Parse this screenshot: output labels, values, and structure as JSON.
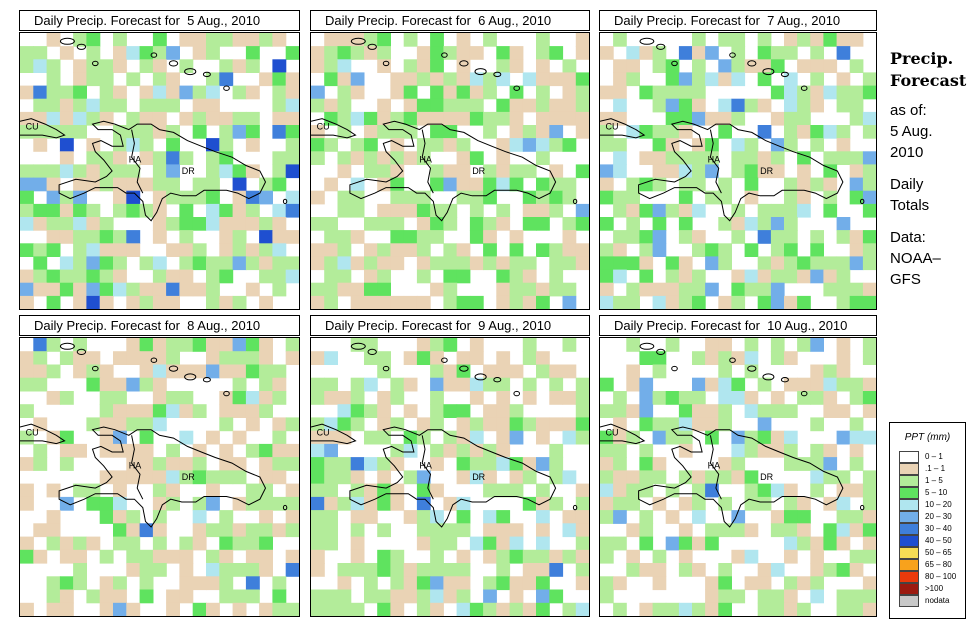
{
  "sidebar": {
    "heading_line1": "Precip.",
    "heading_line2": "Forecast",
    "asof_label": "as of:",
    "asof_date_line1": "5 Aug.",
    "asof_date_line2": "2010",
    "totals_line1": "Daily",
    "totals_line2": "Totals",
    "source_line1": "Data:",
    "source_line2": "NOAA–",
    "source_line3": "GFS"
  },
  "map_labels": {
    "cuba": "CU",
    "haiti": "HA",
    "dominican_republic": "DR"
  },
  "legend": {
    "title": "PPT (mm)",
    "items": [
      {
        "label": "0 – 1",
        "color": "#ffffff"
      },
      {
        "label": ".1 – 1",
        "color": "#ead3b5"
      },
      {
        "label": "1 – 5",
        "color": "#b3ec9a"
      },
      {
        "label": "5 – 10",
        "color": "#5fe35f"
      },
      {
        "label": "10 – 20",
        "color": "#b0e6ef"
      },
      {
        "label": "20 – 30",
        "color": "#72aee9"
      },
      {
        "label": "30 – 40",
        "color": "#3f7fdb"
      },
      {
        "label": "40 – 50",
        "color": "#1f4fd0"
      },
      {
        "label": "50 – 65",
        "color": "#f6dd55"
      },
      {
        "label": "65 – 80",
        "color": "#f8a21c"
      },
      {
        "label": "80 – 100",
        "color": "#ea3a0c"
      },
      {
        "label": ">100",
        "color": "#9c1a10"
      },
      {
        "label": "nodata",
        "color": "#c8c8c8"
      }
    ]
  },
  "panels": [
    {
      "title": "Daily Precip. Forecast for  5 Aug., 2010",
      "seed": 11,
      "weights": [
        30,
        22,
        28,
        10,
        6,
        3,
        2,
        1.2
      ]
    },
    {
      "title": "Daily Precip. Forecast for  6 Aug., 2010",
      "seed": 23,
      "weights": [
        28,
        30,
        24,
        12,
        5,
        1.2,
        0,
        0
      ]
    },
    {
      "title": "Daily Precip. Forecast for  7 Aug., 2010",
      "seed": 37,
      "weights": [
        34,
        18,
        28,
        10,
        6,
        4,
        1.5,
        0
      ]
    },
    {
      "title": "Daily Precip. Forecast for  8 Aug., 2010",
      "seed": 41,
      "weights": [
        36,
        30,
        24,
        6,
        2,
        1,
        0.4,
        0
      ]
    },
    {
      "title": "Daily Precip. Forecast for  9 Aug., 2010",
      "seed": 53,
      "weights": [
        34,
        26,
        24,
        8,
        5,
        3,
        0.6,
        0
      ]
    },
    {
      "title": "Daily Precip. Forecast for  10 Aug., 2010",
      "seed": 67,
      "weights": [
        38,
        22,
        26,
        6,
        4,
        4,
        0.8,
        0
      ]
    }
  ]
}
